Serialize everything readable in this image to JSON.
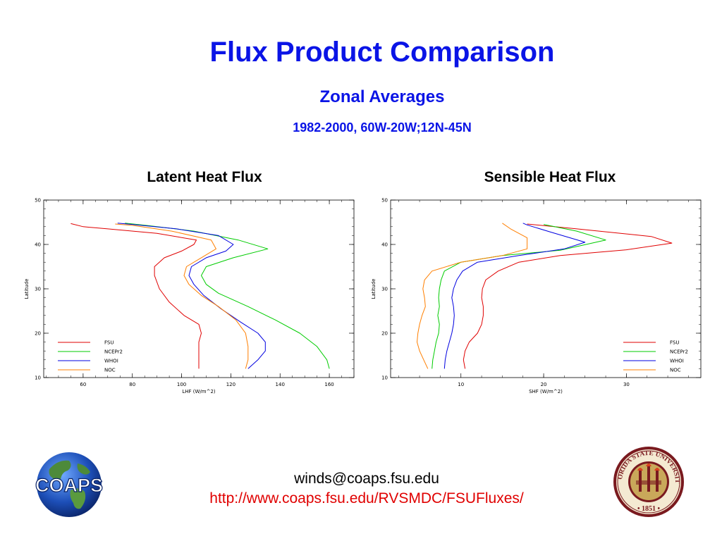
{
  "header": {
    "title": "Flux Product Comparison",
    "subtitle": "Zonal Averages",
    "period": "1982-2000, 60W-20W;12N-45N"
  },
  "footer": {
    "email": "winds@coaps.fsu.edu",
    "url": "http://www.coaps.fsu.edu/RVSMDC/FSUFluxes/"
  },
  "logos": {
    "left": {
      "icon": "globe-logo",
      "text": "COAPS"
    },
    "right": {
      "icon": "university-seal",
      "text": "FLORIDA STATE UNIVERSITY",
      "year": "1851"
    }
  },
  "colors": {
    "FSU": "#e00000",
    "NCEPr2": "#00cc00",
    "WHOI": "#0000e0",
    "NOC": "#ff7f00"
  },
  "chart_data": [
    {
      "type": "line",
      "title": "Latent Heat Flux",
      "xlabel": "LHF (W/m^2)",
      "ylabel": "Latitude",
      "xlim": [
        44,
        170
      ],
      "ylim": [
        10,
        50
      ],
      "xticks": [
        60,
        80,
        100,
        120,
        140,
        160
      ],
      "yticks": [
        10,
        20,
        30,
        40,
        50
      ],
      "grid": false,
      "legend": "bottom-left",
      "series": [
        {
          "name": "FSU",
          "color": "#e00000",
          "points": [
            [
              107,
              12
            ],
            [
              107,
              15
            ],
            [
              107,
              18
            ],
            [
              108,
              20
            ],
            [
              107,
              22
            ],
            [
              101,
              24
            ],
            [
              95,
              27
            ],
            [
              91,
              30
            ],
            [
              89,
              33
            ],
            [
              89,
              35
            ],
            [
              93,
              37
            ],
            [
              100,
              38.5
            ],
            [
              105,
              40
            ],
            [
              106,
              41
            ],
            [
              90,
              42.5
            ],
            [
              70,
              43.5
            ],
            [
              60,
              44
            ],
            [
              55,
              44.7
            ]
          ]
        },
        {
          "name": "NCEPr2",
          "color": "#00cc00",
          "points": [
            [
              160,
              12
            ],
            [
              159,
              14
            ],
            [
              155,
              17
            ],
            [
              148,
              20
            ],
            [
              138,
              23
            ],
            [
              127,
              26
            ],
            [
              115,
              29
            ],
            [
              110,
              31
            ],
            [
              108,
              33
            ],
            [
              110,
              35
            ],
            [
              121,
              37
            ],
            [
              135,
              39
            ],
            [
              123,
              41
            ],
            [
              105,
              43
            ],
            [
              87,
              44.2
            ],
            [
              77,
              44.8
            ]
          ]
        },
        {
          "name": "WHOI",
          "color": "#0000e0",
          "points": [
            [
              127,
              12
            ],
            [
              131,
              14
            ],
            [
              134,
              16
            ],
            [
              134,
              18
            ],
            [
              131,
              20
            ],
            [
              124,
              22.5
            ],
            [
              116,
              25.5
            ],
            [
              109,
              28.5
            ],
            [
              105,
              31
            ],
            [
              103,
              33
            ],
            [
              104,
              35
            ],
            [
              110,
              37
            ],
            [
              118,
              38.5
            ],
            [
              121,
              40
            ],
            [
              115,
              42
            ],
            [
              98,
              43.5
            ],
            [
              80,
              44.5
            ],
            [
              74,
              44.8
            ]
          ]
        },
        {
          "name": "NOC",
          "color": "#ff7f00",
          "points": [
            [
              126,
              12
            ],
            [
              127,
              14
            ],
            [
              127,
              17
            ],
            [
              126,
              20
            ],
            [
              122,
              23
            ],
            [
              115,
              26
            ],
            [
              108,
              28.5
            ],
            [
              103,
              31
            ],
            [
              101,
              33
            ],
            [
              102,
              35
            ],
            [
              108,
              37
            ],
            [
              114,
              39
            ],
            [
              112,
              41
            ],
            [
              96,
              43
            ],
            [
              80,
              44.3
            ],
            [
              73,
              44.6
            ]
          ]
        }
      ]
    },
    {
      "type": "line",
      "title": "Sensible Heat Flux",
      "xlabel": "SHF (W/m^2)",
      "ylabel": "Latitude",
      "xlim": [
        1.5,
        39
      ],
      "ylim": [
        10,
        50
      ],
      "xticks": [
        10,
        20,
        30
      ],
      "yticks": [
        10,
        20,
        30,
        40,
        50
      ],
      "grid": false,
      "legend": "bottom-right",
      "series": [
        {
          "name": "FSU",
          "color": "#e00000",
          "points": [
            [
              10.5,
              12
            ],
            [
              10.3,
              14
            ],
            [
              10.5,
              16
            ],
            [
              11,
              18
            ],
            [
              12,
              20
            ],
            [
              12.5,
              22
            ],
            [
              12.7,
              24
            ],
            [
              12.7,
              26
            ],
            [
              12.5,
              28
            ],
            [
              12.6,
              30
            ],
            [
              13,
              32
            ],
            [
              14.5,
              34
            ],
            [
              17,
              36
            ],
            [
              22,
              37.5
            ],
            [
              30,
              38.8
            ],
            [
              35.5,
              40.3
            ],
            [
              33,
              41.8
            ],
            [
              24,
              43.5
            ],
            [
              18,
              44.6
            ]
          ]
        },
        {
          "name": "NCEPr2",
          "color": "#00cc00",
          "points": [
            [
              6.5,
              12
            ],
            [
              6.6,
              14
            ],
            [
              6.8,
              16
            ],
            [
              7,
              18
            ],
            [
              7.3,
              20
            ],
            [
              7.4,
              22
            ],
            [
              7.2,
              24
            ],
            [
              7.4,
              26
            ],
            [
              7.3,
              28
            ],
            [
              7.4,
              30
            ],
            [
              7.6,
              32
            ],
            [
              8,
              34
            ],
            [
              10,
              36
            ],
            [
              15,
              37.5
            ],
            [
              22,
              38.7
            ],
            [
              27.5,
              41
            ],
            [
              24,
              43
            ],
            [
              20,
              44.5
            ]
          ]
        },
        {
          "name": "WHOI",
          "color": "#0000e0",
          "points": [
            [
              8,
              12
            ],
            [
              8.1,
              14
            ],
            [
              8.3,
              16
            ],
            [
              8.6,
              18
            ],
            [
              8.9,
              20
            ],
            [
              9.1,
              22
            ],
            [
              9.2,
              24
            ],
            [
              9.1,
              26
            ],
            [
              8.9,
              28
            ],
            [
              9.1,
              30
            ],
            [
              9.5,
              32
            ],
            [
              10.2,
              34
            ],
            [
              12,
              36
            ],
            [
              17,
              37.5
            ],
            [
              22.5,
              39
            ],
            [
              25,
              40.5
            ],
            [
              21,
              42.7
            ],
            [
              18,
              44.4
            ],
            [
              17.5,
              44.8
            ]
          ]
        },
        {
          "name": "NOC",
          "color": "#ff7f00",
          "points": [
            [
              6,
              12
            ],
            [
              5.5,
              14
            ],
            [
              5,
              16
            ],
            [
              4.7,
              18
            ],
            [
              4.8,
              20
            ],
            [
              5,
              22
            ],
            [
              5.3,
              24
            ],
            [
              5.7,
              26
            ],
            [
              5.6,
              28
            ],
            [
              5.4,
              30
            ],
            [
              5.6,
              32
            ],
            [
              6.5,
              34
            ],
            [
              10,
              36
            ],
            [
              15,
              37.5
            ],
            [
              18,
              39
            ],
            [
              18,
              41.5
            ],
            [
              16,
              43.5
            ],
            [
              15,
              44.8
            ]
          ]
        }
      ]
    }
  ]
}
